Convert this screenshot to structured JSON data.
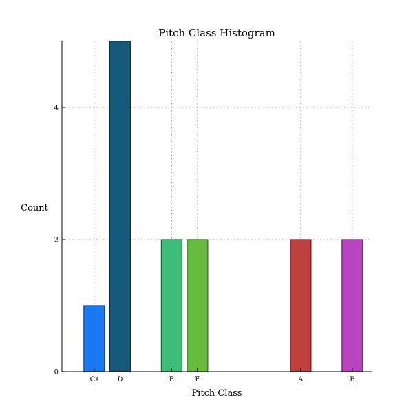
{
  "chart_data": {
    "type": "bar",
    "title": "Pitch Class Histogram",
    "xlabel": "Pitch Class",
    "ylabel": "Count",
    "x_positions_semitone": [
      1,
      2,
      4,
      5,
      9,
      11
    ],
    "categories": [
      "C♯",
      "D",
      "E",
      "F",
      "A",
      "B"
    ],
    "values": [
      1,
      5,
      2,
      2,
      2,
      2
    ],
    "colors": [
      "#1a78f0",
      "#155a7a",
      "#3dbe78",
      "#66bb3c",
      "#c04040",
      "#b944c0"
    ],
    "edge_colors": [
      "#0d3c78",
      "#0a2d3d",
      "#1e5f3c",
      "#335e1e",
      "#602020",
      "#5c2260"
    ],
    "ylim": [
      0,
      5
    ],
    "xlim": [
      -0.25,
      11.75
    ],
    "yticks": [
      0,
      2,
      4
    ],
    "grid": true
  }
}
